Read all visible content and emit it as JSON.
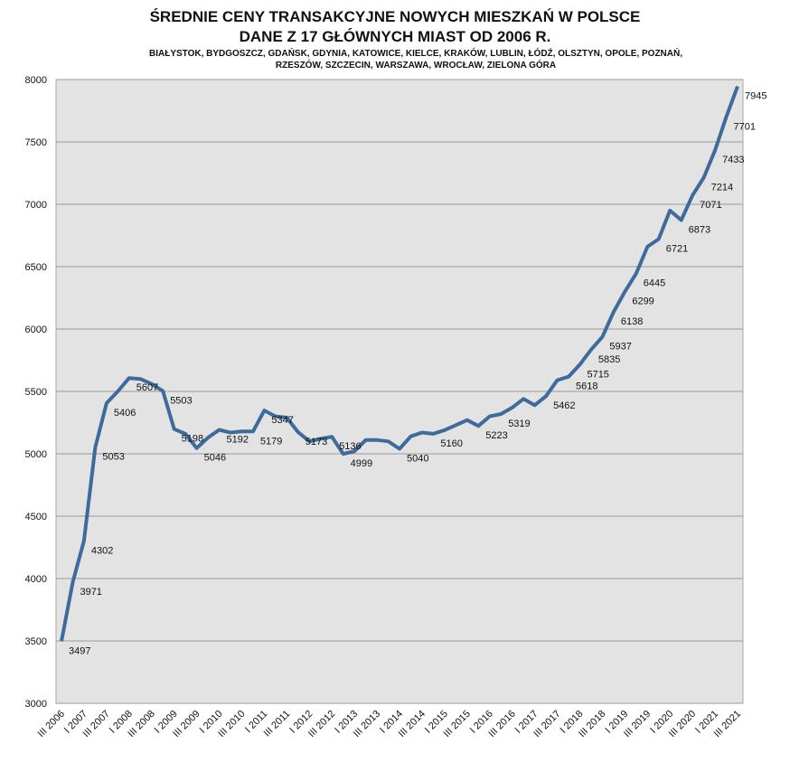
{
  "chart_data": {
    "type": "line",
    "title": [
      "ŚREDNIE CENY TRANSAKCYJNE NOWYCH MIESZKAŃ W POLSCE",
      "DANE Z 17 GŁÓWNYCH MIAST OD 2006 R."
    ],
    "subtitle": [
      "BIAŁYSTOK, BYDGOSZCZ, GDAŃSK, GDYNIA, KATOWICE, KIELCE, KRAKÓW, LUBLIN, ŁÓDŹ, OLSZTYN, OPOLE, POZNAŃ,",
      "RZESZÓW, SZCZECIN, WARSZAWA, WROCŁAW, ZIELONA GÓRA"
    ],
    "categories": [
      "III 2006",
      null,
      "I 2007",
      null,
      "III 2007",
      null,
      "I 2008",
      null,
      "III 2008",
      null,
      "I 2009",
      null,
      "III 2009",
      null,
      "I 2010",
      null,
      "III 2010",
      null,
      "I 2011",
      null,
      "III 2011",
      null,
      "I 2012",
      null,
      "III 2012",
      null,
      "I 2013",
      null,
      "III 2013",
      null,
      "I 2014",
      null,
      "III 2014",
      null,
      "I 2015",
      null,
      "III 2015",
      null,
      "I 2016",
      null,
      "III 2016",
      null,
      "I 2017",
      null,
      "III 2017",
      null,
      "I 2018",
      null,
      "III 2018",
      null,
      "I 2019",
      null,
      "III 2019",
      null,
      "I 2020",
      null,
      "III 2020",
      null,
      "I 2021",
      null,
      "III 2021"
    ],
    "values": [
      3497,
      3971,
      4302,
      5053,
      5406,
      5500,
      5607,
      5600,
      5560,
      5503,
      5198,
      5160,
      5046,
      5130,
      5192,
      5170,
      5180,
      5179,
      5347,
      5300,
      5290,
      5173,
      5100,
      5120,
      5136,
      4999,
      5020,
      5110,
      5110,
      5100,
      5040,
      5140,
      5170,
      5160,
      5190,
      5230,
      5270,
      5223,
      5300,
      5319,
      5370,
      5440,
      5390,
      5462,
      5590,
      5618,
      5715,
      5835,
      5937,
      6138,
      6299,
      6445,
      6660,
      6721,
      6950,
      6873,
      7071,
      7214,
      7433,
      7701,
      7945
    ],
    "value_labels": [
      "3497",
      "3971",
      "4302",
      "5053",
      "5406",
      null,
      "5607",
      null,
      null,
      "5503",
      "5198",
      null,
      "5046",
      null,
      "5192",
      null,
      null,
      "5179",
      "5347",
      null,
      null,
      "5173",
      null,
      null,
      "5136",
      "4999",
      null,
      null,
      null,
      null,
      "5040",
      null,
      null,
      "5160",
      null,
      null,
      null,
      "5223",
      null,
      "5319",
      null,
      null,
      null,
      "5462",
      null,
      "5618",
      "5715",
      "5835",
      "5937",
      "6138",
      "6299",
      "6445",
      null,
      "6721",
      null,
      "6873",
      "7071",
      "7214",
      "7433",
      "7701",
      "7945"
    ],
    "color": "#3d6b9c",
    "ylim": [
      3000,
      8000
    ],
    "yticks": [
      3000,
      3500,
      4000,
      4500,
      5000,
      5500,
      6000,
      6500,
      7000,
      7500,
      8000
    ],
    "grid": true
  }
}
